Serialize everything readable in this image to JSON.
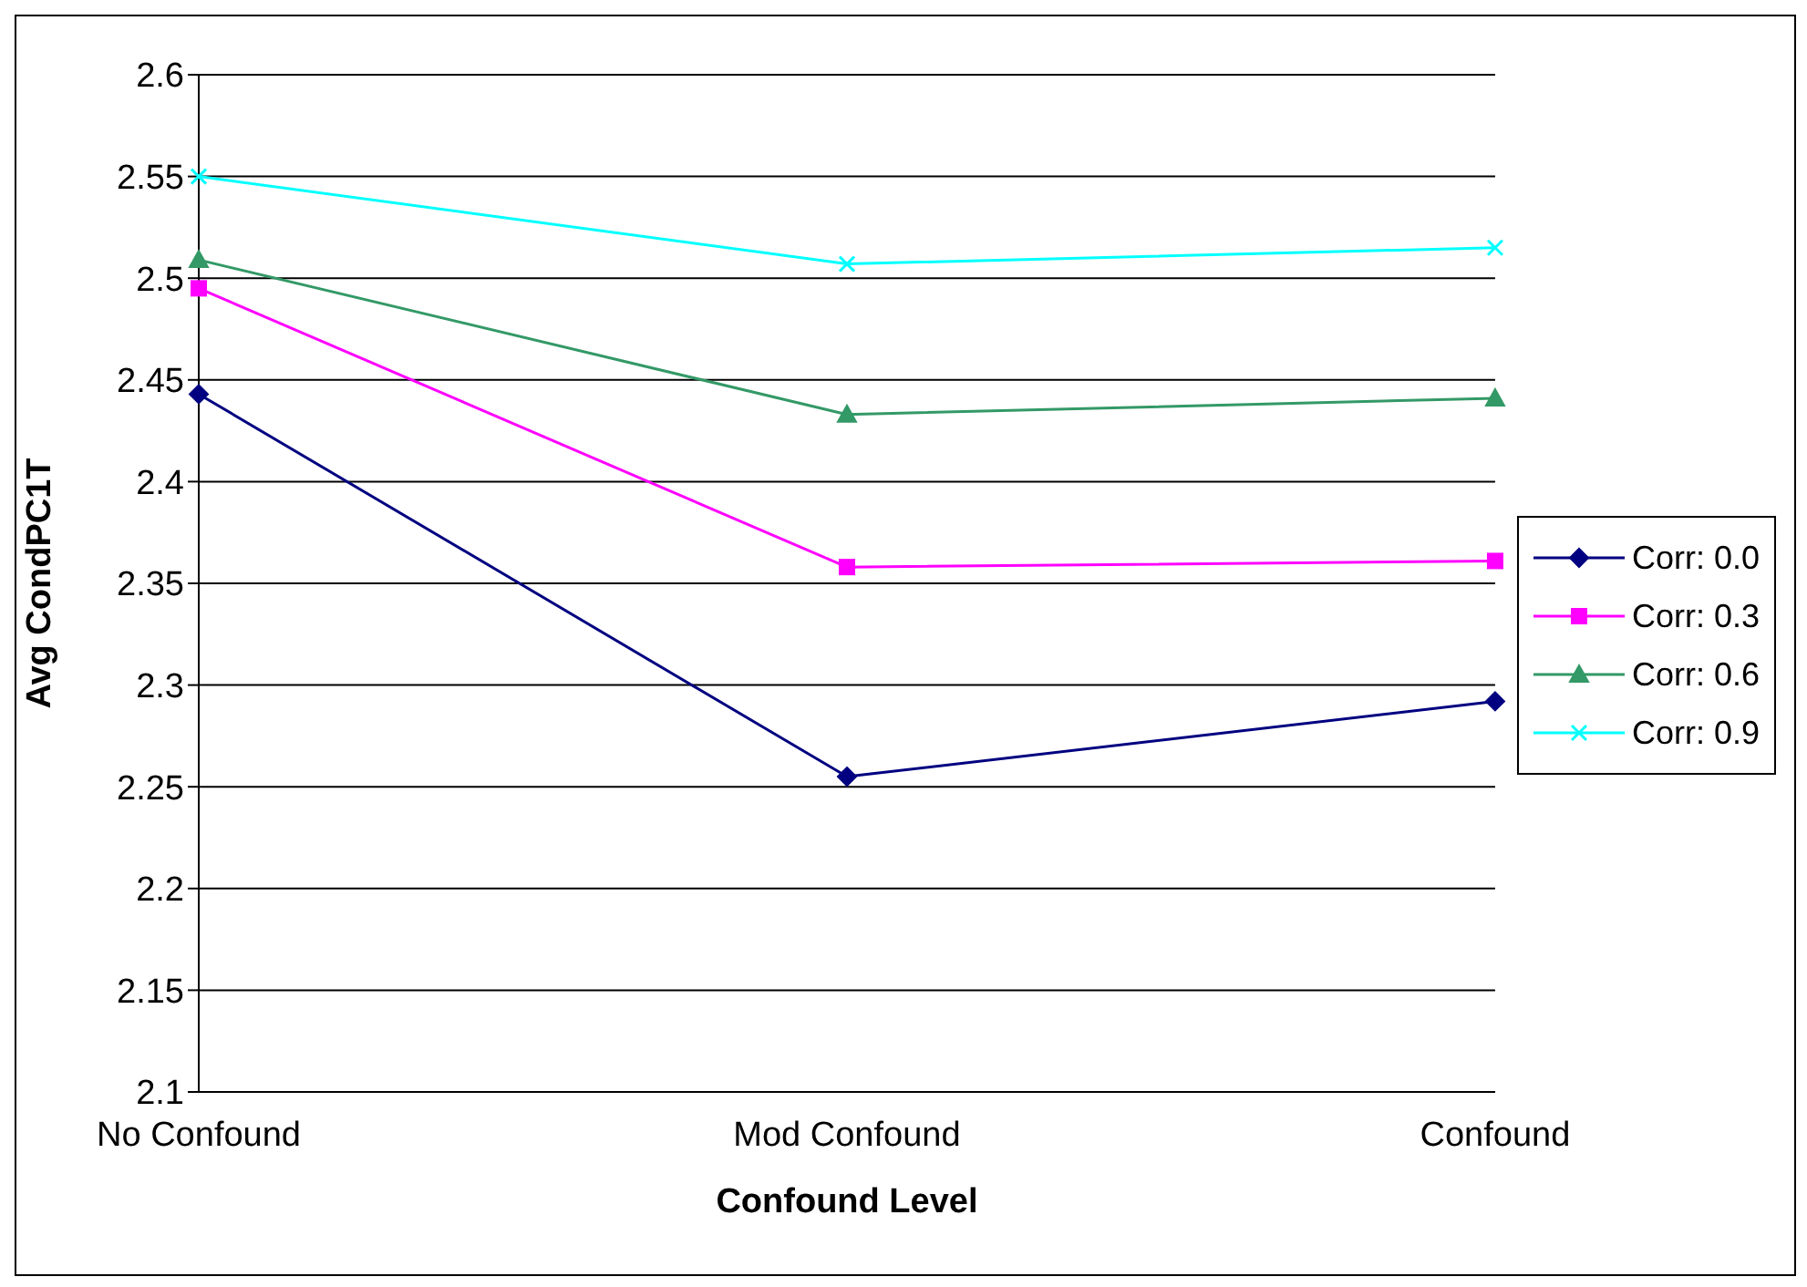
{
  "chart_data": {
    "type": "line",
    "xlabel": "Confound Level",
    "ylabel": "Avg CondPC1T",
    "categories": [
      "No Confound",
      "Mod Confound",
      "Confound"
    ],
    "series": [
      {
        "name": "Corr: 0.0",
        "color": "#000080",
        "marker": "diamond",
        "values": [
          2.443,
          2.255,
          2.292
        ]
      },
      {
        "name": "Corr: 0.3",
        "color": "#ff00ff",
        "marker": "square",
        "values": [
          2.495,
          2.358,
          2.361
        ]
      },
      {
        "name": "Corr: 0.6",
        "color": "#339966",
        "marker": "triangle",
        "values": [
          2.509,
          2.433,
          2.441
        ]
      },
      {
        "name": "Corr: 0.9",
        "color": "#00ffff",
        "marker": "cross",
        "values": [
          2.55,
          2.507,
          2.515
        ]
      }
    ],
    "ylim": [
      2.1,
      2.6
    ],
    "yticks": [
      2.1,
      2.15,
      2.2,
      2.25,
      2.3,
      2.35,
      2.4,
      2.45,
      2.5,
      2.55,
      2.6
    ],
    "grid": "y",
    "legend": "right"
  }
}
